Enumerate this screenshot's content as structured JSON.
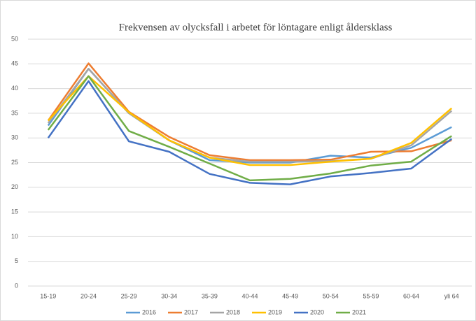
{
  "chart_data": {
    "type": "line",
    "title": "Frekvensen av olycksfall  i arbetet för löntagare  enligt åldersklass",
    "categories": [
      "15-19",
      "20-24",
      "25-29",
      "30-34",
      "35-39",
      "40-44",
      "45-49",
      "50-54",
      "55-59",
      "60-64",
      "yli 64"
    ],
    "series": [
      {
        "name": "2016",
        "color": "#5b9bd5",
        "values": [
          32.5,
          44,
          35,
          29.5,
          25.5,
          25,
          25,
          26.4,
          26,
          28,
          32.2
        ]
      },
      {
        "name": "2017",
        "color": "#ed7d31",
        "values": [
          33.5,
          45.1,
          35.3,
          30.2,
          26.5,
          25.5,
          25.5,
          25.6,
          27.2,
          27.3,
          29.5
        ]
      },
      {
        "name": "2018",
        "color": "#a5a5a5",
        "values": [
          33,
          44,
          35,
          29.5,
          26,
          25.2,
          25.2,
          25.3,
          25.8,
          28.5,
          35.5
        ]
      },
      {
        "name": "2019",
        "color": "#ffc000",
        "values": [
          33.5,
          42.5,
          35.2,
          29.5,
          26,
          24.5,
          24.5,
          25.2,
          25.8,
          29,
          36
        ]
      },
      {
        "name": "2020",
        "color": "#4472c4",
        "values": [
          30,
          41.5,
          29.3,
          27.2,
          22.7,
          20.9,
          20.6,
          22.2,
          22.9,
          23.8,
          29.8
        ]
      },
      {
        "name": "2021",
        "color": "#70ad47",
        "values": [
          31.6,
          42.5,
          31.4,
          28.2,
          24.8,
          21.4,
          21.7,
          22.8,
          24.4,
          25.2,
          30.4
        ]
      }
    ],
    "ylim": [
      0,
      50
    ],
    "yticks": [
      0,
      5,
      10,
      15,
      20,
      25,
      30,
      35,
      40,
      45,
      50
    ],
    "grid": true,
    "legend": "bottom"
  }
}
